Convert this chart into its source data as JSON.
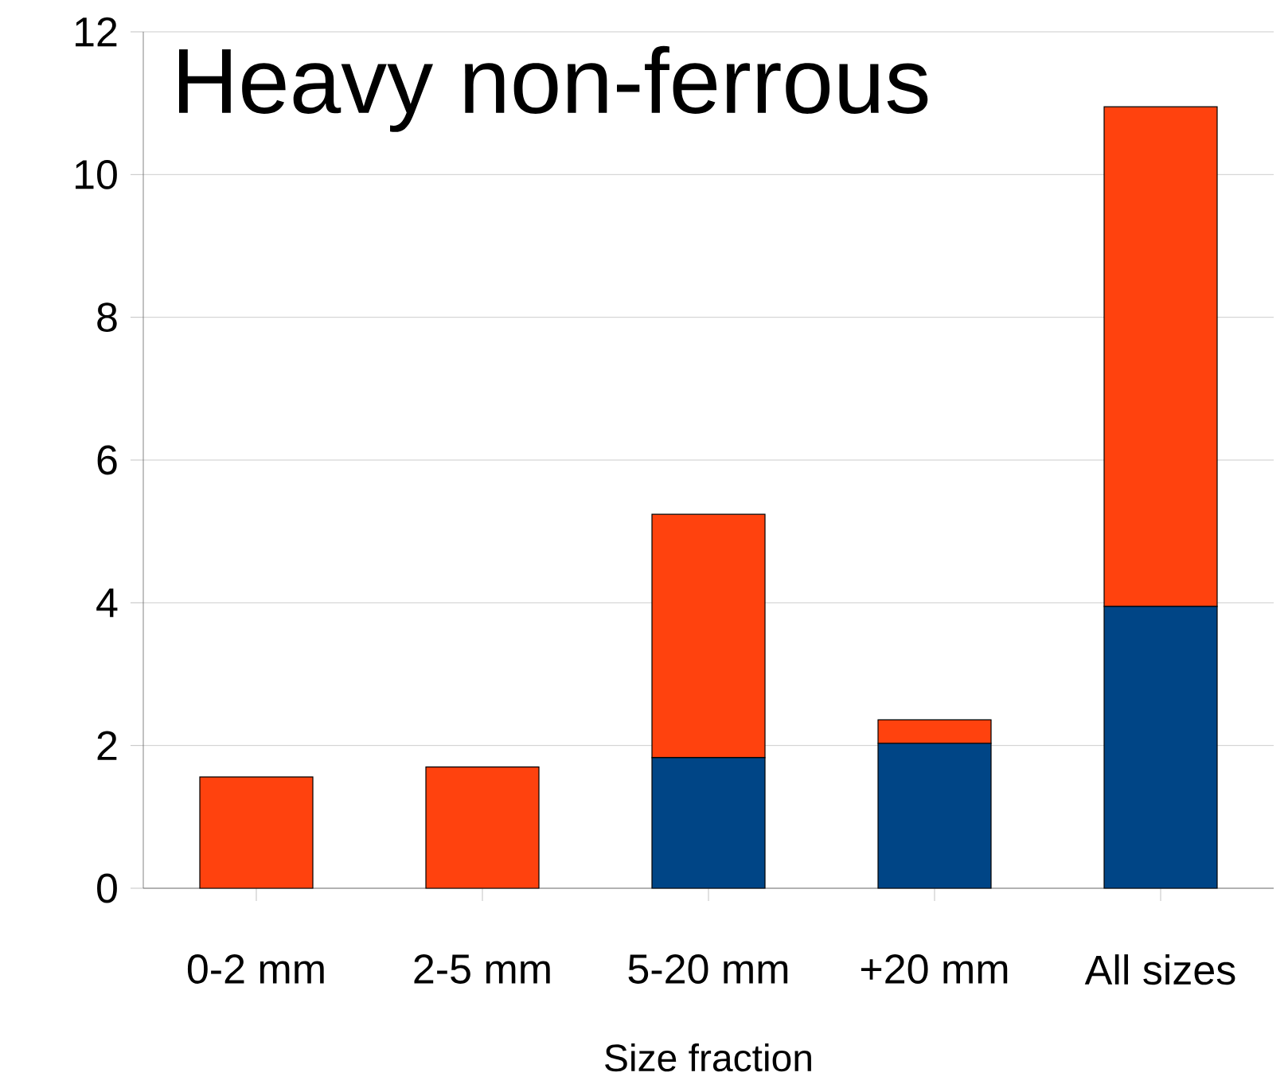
{
  "chart_data": {
    "type": "bar",
    "title": "Heavy non-ferrous",
    "xlabel": "Size fraction",
    "categories": [
      "0-2 mm",
      "2-5 mm",
      "5-20 mm",
      "+20 mm",
      "All sizes"
    ],
    "stacked": true,
    "series": [
      {
        "color": "#004586",
        "values": [
          0,
          0,
          1.83,
          2.03,
          3.95
        ]
      },
      {
        "color": "#ff420e",
        "values": [
          1.56,
          1.7,
          3.41,
          0.33,
          7.0
        ]
      }
    ],
    "ylim": [
      0,
      12
    ],
    "yticks": [
      0,
      2,
      4,
      6,
      8,
      10,
      12
    ],
    "grid": "y"
  }
}
